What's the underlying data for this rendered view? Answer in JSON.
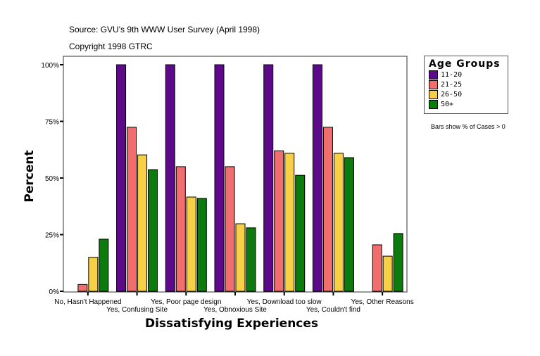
{
  "header": {
    "source": "Source: GVU's 9th WWW User Survey (April 1998)",
    "copyright": "Copyright 1998 GTRC"
  },
  "chart_data": {
    "type": "bar",
    "xlabel": "Dissatisfying Experiences",
    "ylabel": "Percent",
    "ylim": [
      0,
      100
    ],
    "yticks": [
      "0%",
      "25%",
      "50%",
      "75%",
      "100%"
    ],
    "grid": false,
    "legend_position": "right",
    "legend_title": "Age Groups",
    "note": "Bars show % of Cases > 0",
    "categories": [
      "No, Hasn't Happened",
      "Yes, Confusing Site",
      "Yes, Poor page design",
      "Yes, Obnoxious Site",
      "Yes, Download too slow",
      "Yes, Couldn't find",
      "Yes, Other Reasons"
    ],
    "series": [
      {
        "name": "11-20",
        "color": "#5c0a8a",
        "values": [
          0,
          100,
          100,
          100,
          100,
          100,
          0
        ]
      },
      {
        "name": "21-25",
        "color": "#f06e6e",
        "values": [
          3,
          72.4,
          55,
          55,
          62,
          72.4,
          20.5
        ]
      },
      {
        "name": "26-50",
        "color": "#f7d045",
        "values": [
          15,
          60.2,
          41.6,
          29.8,
          60.9,
          60.9,
          15.5
        ]
      },
      {
        "name": "50+",
        "color": "#0c7a0c",
        "values": [
          23,
          53.7,
          41,
          28,
          51.2,
          59,
          25.5
        ]
      }
    ]
  }
}
